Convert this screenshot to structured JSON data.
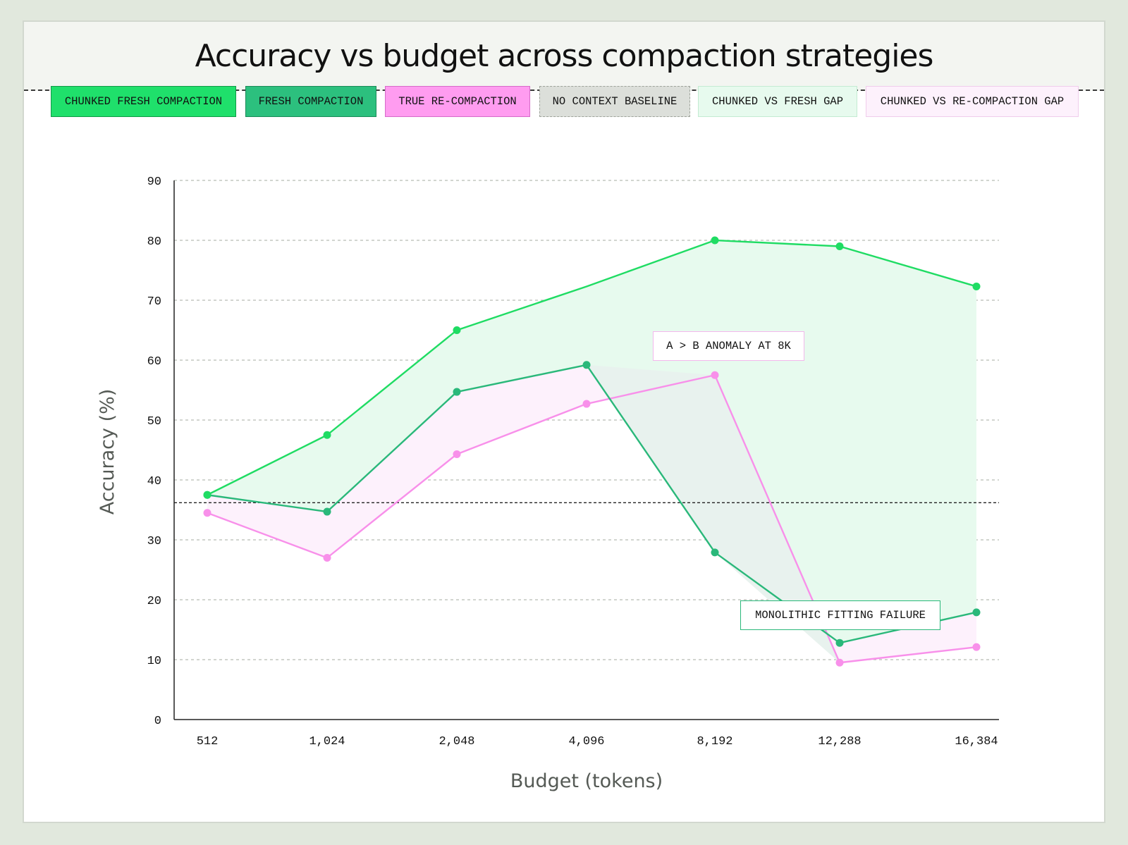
{
  "title": "Accuracy vs budget across compaction strategies",
  "legend": [
    {
      "label": "CHUNKED FRESH COMPACTION",
      "fill": "#1fe06b",
      "border": "#0f9a46"
    },
    {
      "label": "FRESH COMPACTION",
      "fill": "#2cc07e",
      "border": "#1a8a58"
    },
    {
      "label": "TRUE RE-COMPACTION",
      "fill": "#ff9cf0",
      "border": "#d66bc9"
    },
    {
      "label": "NO CONTEXT BASELINE",
      "fill": "#dcdfda",
      "border": "#9ea39b",
      "dashed": true
    },
    {
      "label": "CHUNKED VS FRESH GAP",
      "fill": "#e7faee",
      "border": "#c3ebd2"
    },
    {
      "label": "CHUNKED VS RE-COMPACTION GAP",
      "fill": "#fdf1fc",
      "border": "#f0cdec"
    }
  ],
  "annotations": {
    "anomaly": "A > B ANOMALY AT 8K",
    "failure": "MONOLITHIC FITTING FAILURE"
  },
  "chart_data": {
    "type": "line",
    "xlabel": "Budget (tokens)",
    "ylabel": "Accuracy (%)",
    "categories": [
      "512",
      "1,024",
      "2,048",
      "4,096",
      "8,192",
      "12,288",
      "16,384"
    ],
    "ylim": [
      0,
      90
    ],
    "yticks": [
      0,
      10,
      20,
      30,
      40,
      50,
      60,
      70,
      80,
      90
    ],
    "grid": true,
    "baseline": 36.2,
    "series": [
      {
        "name": "CHUNKED FRESH COMPACTION",
        "color": "#1fdc63",
        "values": [
          37.5,
          47.5,
          65,
          72.3,
          80,
          79,
          72.3
        ]
      },
      {
        "name": "FRESH COMPACTION",
        "color": "#2ab87a",
        "values": [
          37.5,
          34.7,
          54.7,
          59.2,
          27.9,
          12.8,
          17.9
        ]
      },
      {
        "name": "TRUE RE-COMPACTION",
        "color": "#f890ea",
        "values": [
          34.5,
          27,
          44.3,
          52.7,
          57.5,
          9.5,
          12.1
        ]
      }
    ],
    "markers": [
      [
        true,
        true,
        true,
        false,
        true,
        true,
        true
      ],
      [
        true,
        true,
        true,
        true,
        true,
        true,
        true
      ],
      [
        true,
        true,
        true,
        true,
        true,
        true,
        true
      ]
    ]
  }
}
